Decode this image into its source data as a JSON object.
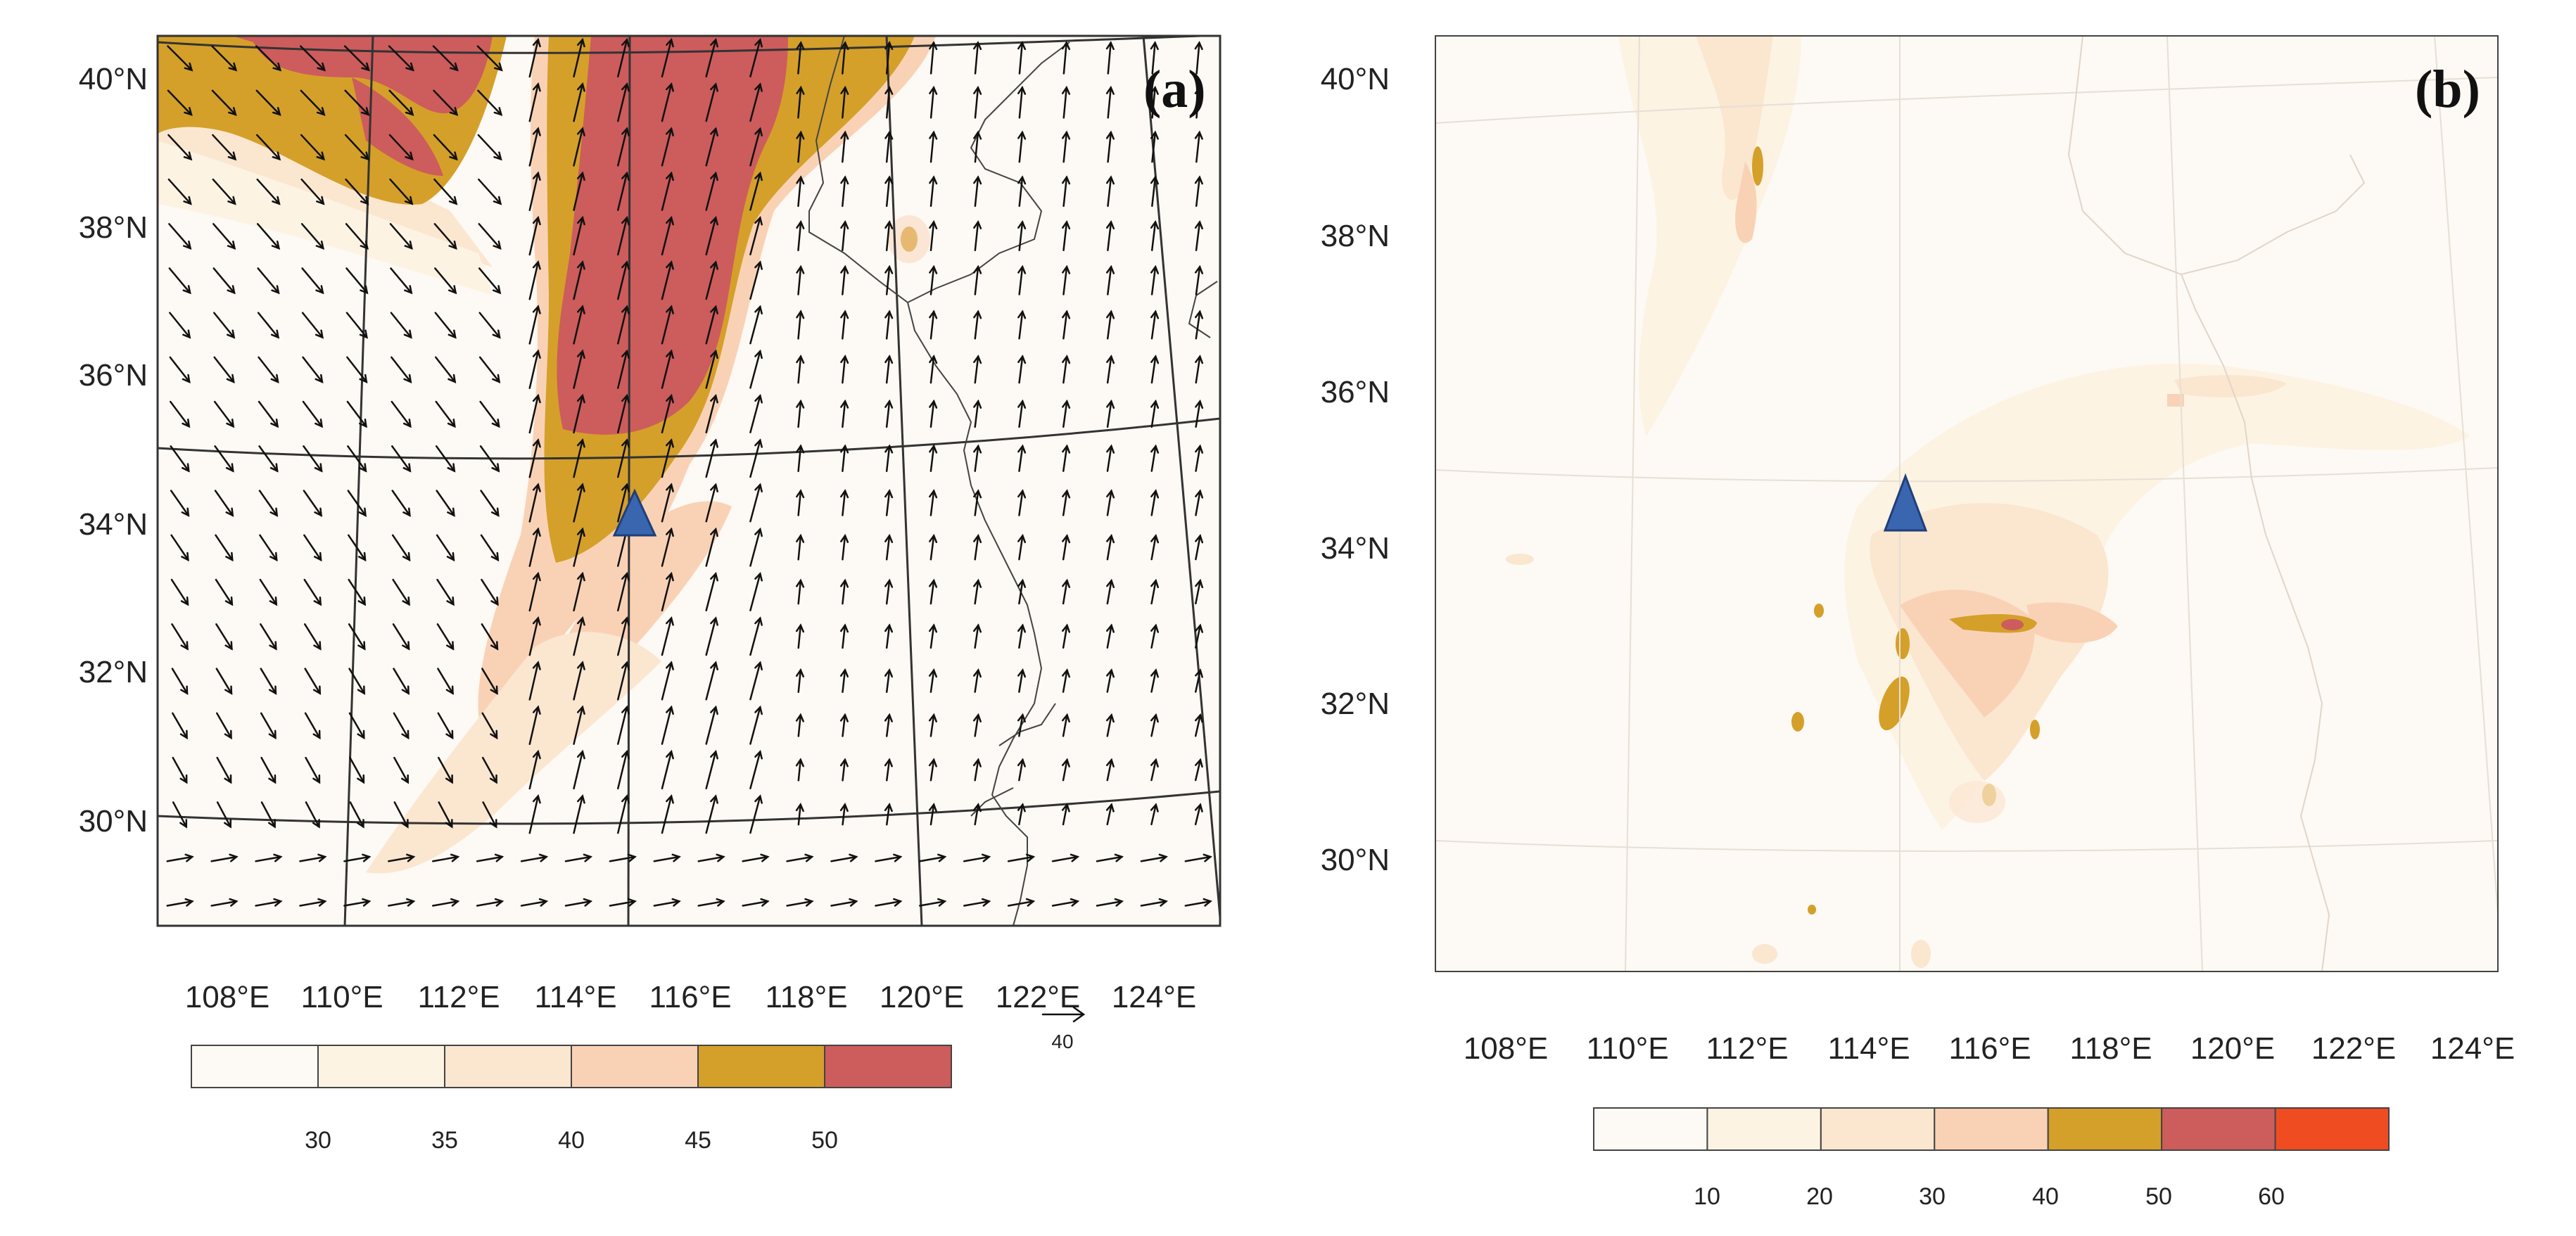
{
  "panels": [
    {
      "label": "(a)",
      "lat_labels": [
        "40°N",
        "38°N",
        "36°N",
        "34°N",
        "32°N",
        "30°N"
      ],
      "lon_labels": [
        "108°E",
        "110°E",
        "112°E",
        "114°E",
        "116°E",
        "118°E",
        "120°E",
        "122°E",
        "124°E"
      ],
      "colorbar": {
        "ticks": [
          "30",
          "35",
          "40",
          "45",
          "50"
        ],
        "colors": [
          "#fdf9f4",
          "#fdf3e3",
          "#fbe6d0",
          "#f9d2b6",
          "#d4a02a",
          "#cd5c5c"
        ]
      },
      "vector_reference": "40",
      "marker": {
        "type": "triangle",
        "lon": 115.0,
        "lat": 34.2,
        "color": "#3a66b0"
      }
    },
    {
      "label": "(b)",
      "lat_labels": [
        "40°N",
        "38°N",
        "36°N",
        "34°N",
        "32°N",
        "30°N"
      ],
      "lon_labels": [
        "108°E",
        "110°E",
        "112°E",
        "114°E",
        "116°E",
        "118°E",
        "120°E",
        "122°E",
        "124°E"
      ],
      "colorbar": {
        "ticks": [
          "10",
          "20",
          "30",
          "40",
          "50",
          "60"
        ],
        "colors": [
          "#fdf9f4",
          "#fdf3e3",
          "#fbe6d0",
          "#f9d2b6",
          "#d4a02a",
          "#cd5c5c",
          "#ef4c22"
        ]
      },
      "marker": {
        "type": "triangle",
        "lon": 114.6,
        "lat": 34.5,
        "color": "#3a66b0"
      }
    }
  ]
}
